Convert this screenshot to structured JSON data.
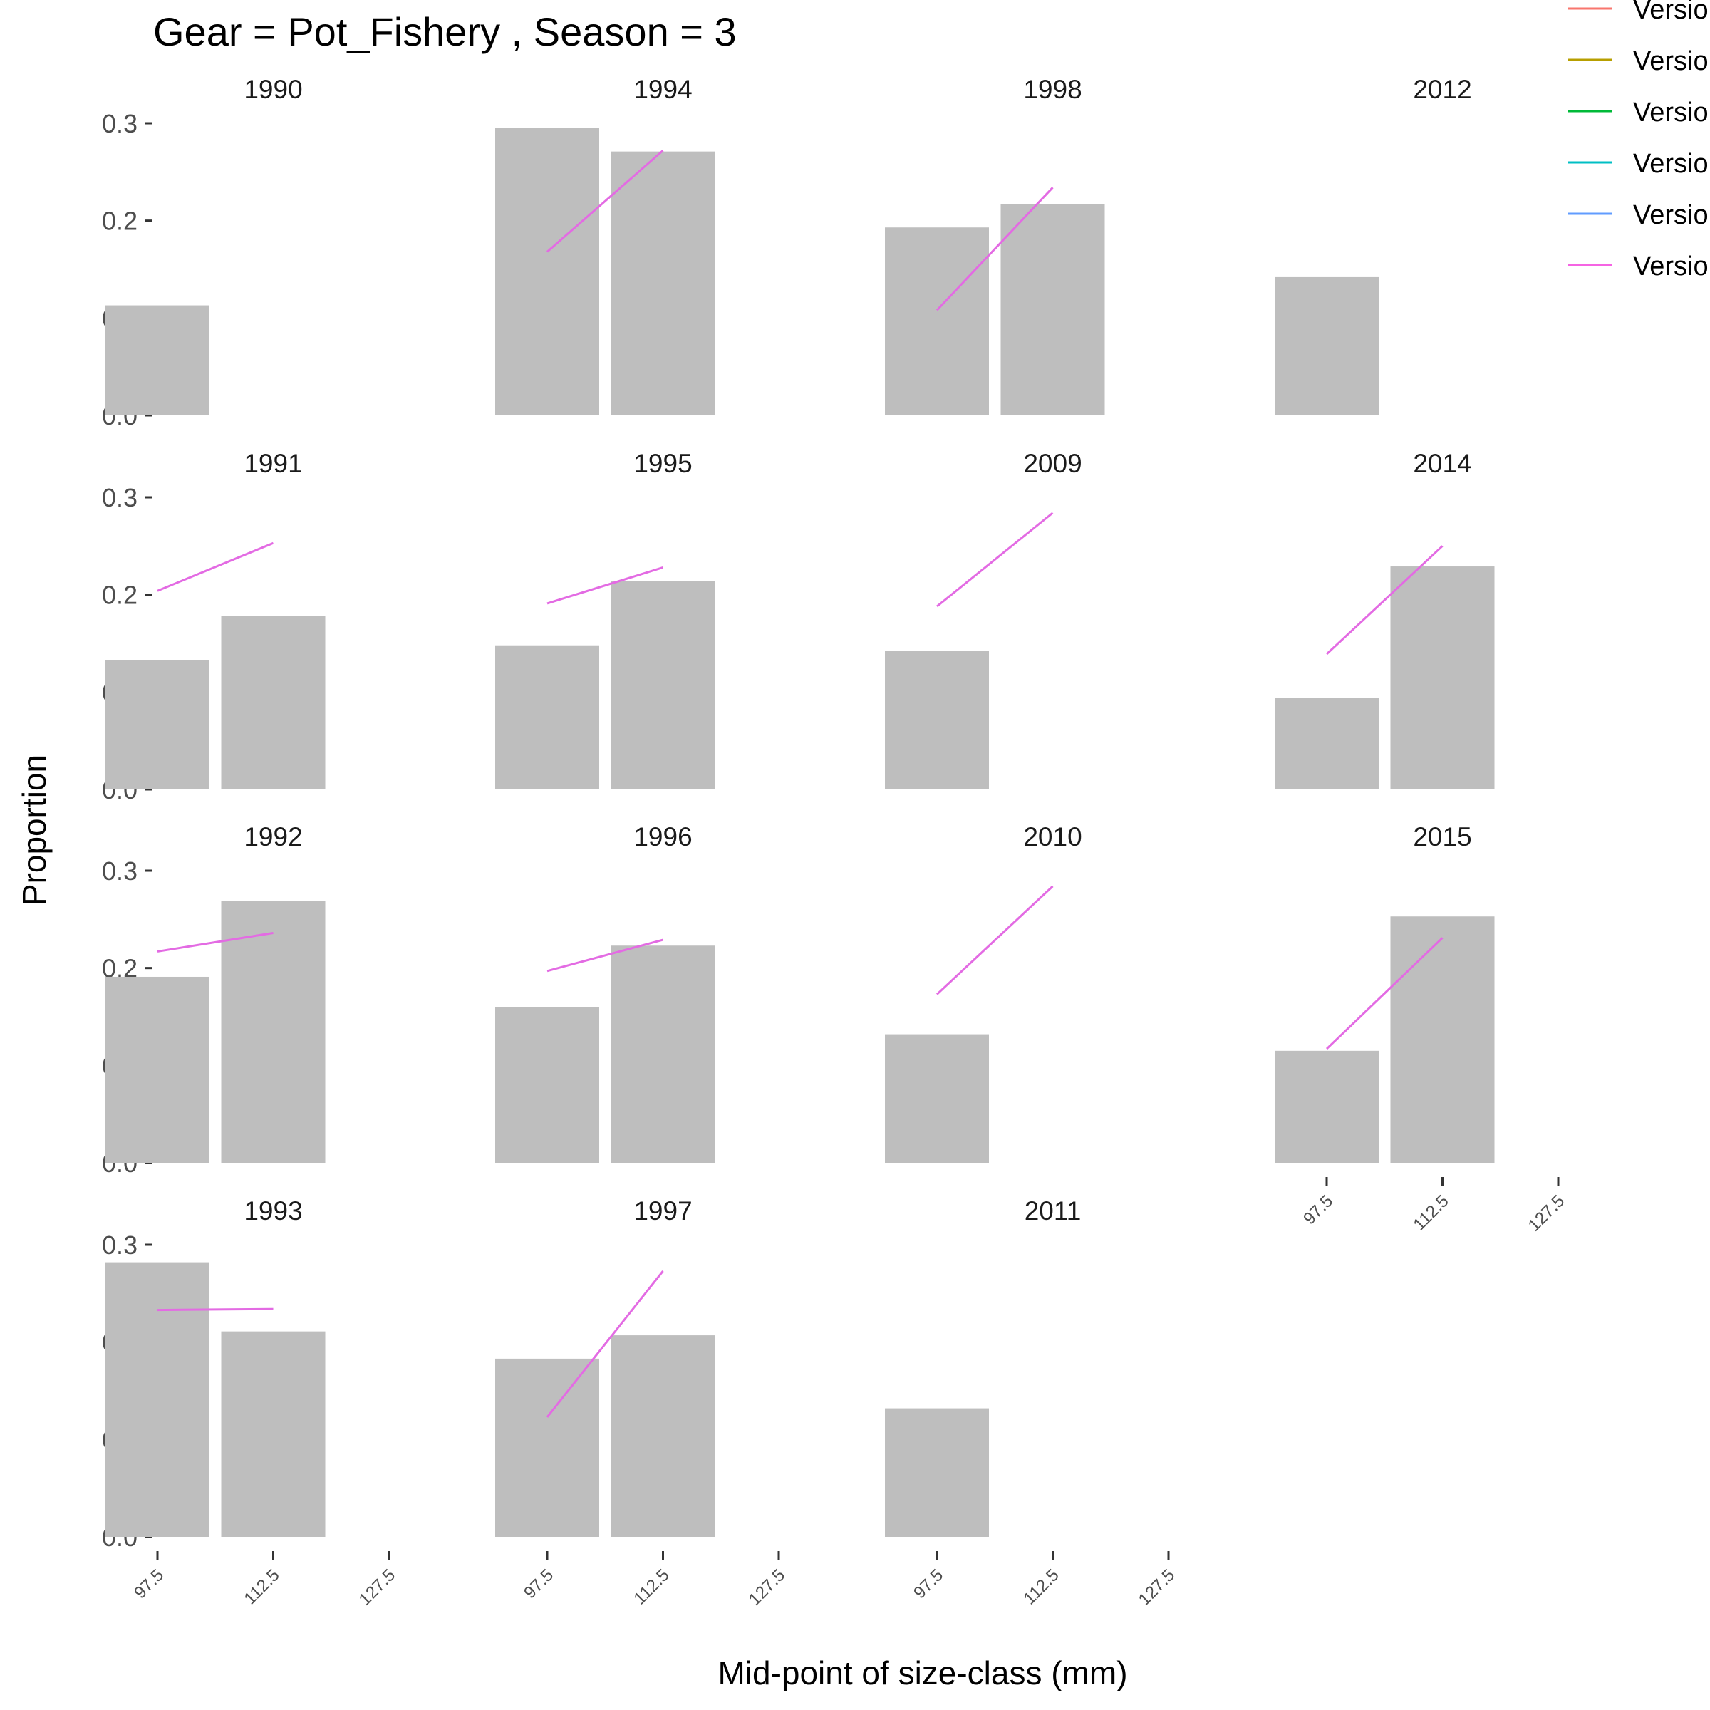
{
  "chart_data": {
    "type": "bar",
    "title": "Gear = Pot_Fishery , Season = 3",
    "xlabel": "Mid-point of size-class (mm)",
    "ylabel": "Proportion",
    "ylim": [
      0,
      0.3
    ],
    "y_ticks": [
      "0.0",
      "0.1",
      "0.2",
      "0.3"
    ],
    "y_tick_values": [
      0,
      0.1,
      0.2,
      0.3
    ],
    "x_ticks": [
      "97.5",
      "112.5",
      "127.5"
    ],
    "x_tick_values": [
      97.5,
      112.5,
      127.5
    ],
    "grid": false,
    "bar_color": "#bebebe",
    "line_color": "#e36be3",
    "legend": {
      "placement": "top-right",
      "entries": [
        {
          "label": "Versio",
          "color": "#f8766d"
        },
        {
          "label": "Versio",
          "color": "#b79f00"
        },
        {
          "label": "Versio",
          "color": "#00ba38"
        },
        {
          "label": "Versio",
          "color": "#00bfc4"
        },
        {
          "label": "Versio",
          "color": "#619cff"
        },
        {
          "label": "Versio",
          "color": "#f564e3"
        }
      ]
    },
    "panels": [
      {
        "year": "1990",
        "col": 0,
        "row": 0,
        "bars": [
          0.113,
          null
        ],
        "line": null,
        "show_x_axis": false
      },
      {
        "year": "1994",
        "col": 1,
        "row": 0,
        "bars": [
          0.295,
          0.271
        ],
        "line": [
          0.168,
          0.272
        ],
        "show_x_axis": false
      },
      {
        "year": "1998",
        "col": 2,
        "row": 0,
        "bars": [
          0.193,
          0.217
        ],
        "line": [
          0.108,
          0.234
        ],
        "show_x_axis": false
      },
      {
        "year": "2012",
        "col": 3,
        "row": 0,
        "bars": [
          0.142,
          null
        ],
        "line": null,
        "show_x_axis": false
      },
      {
        "year": "1991",
        "col": 0,
        "row": 1,
        "bars": [
          0.133,
          0.178
        ],
        "line": [
          0.204,
          0.253
        ],
        "show_x_axis": false
      },
      {
        "year": "1995",
        "col": 1,
        "row": 1,
        "bars": [
          0.148,
          0.214
        ],
        "line": [
          0.191,
          0.228
        ],
        "show_x_axis": false
      },
      {
        "year": "2009",
        "col": 2,
        "row": 1,
        "bars": [
          0.142,
          null
        ],
        "line": [
          0.188,
          0.284
        ],
        "show_x_axis": false
      },
      {
        "year": "2014",
        "col": 3,
        "row": 1,
        "bars": [
          0.094,
          0.229
        ],
        "line": [
          0.139,
          0.25
        ],
        "show_x_axis": false
      },
      {
        "year": "1992",
        "col": 0,
        "row": 2,
        "bars": [
          0.191,
          0.269
        ],
        "line": [
          0.217,
          0.236
        ],
        "show_x_axis": false
      },
      {
        "year": "1996",
        "col": 1,
        "row": 2,
        "bars": [
          0.16,
          0.223
        ],
        "line": [
          0.197,
          0.229
        ],
        "show_x_axis": false
      },
      {
        "year": "2010",
        "col": 2,
        "row": 2,
        "bars": [
          0.132,
          null
        ],
        "line": [
          0.173,
          0.284
        ],
        "show_x_axis": false
      },
      {
        "year": "2015",
        "col": 3,
        "row": 2,
        "bars": [
          0.115,
          0.253
        ],
        "line": [
          0.117,
          0.231
        ],
        "show_x_axis": true
      },
      {
        "year": "1993",
        "col": 0,
        "row": 3,
        "bars": [
          0.282,
          0.211
        ],
        "line": [
          0.233,
          0.234
        ],
        "show_x_axis": true
      },
      {
        "year": "1997",
        "col": 1,
        "row": 3,
        "bars": [
          0.183,
          0.207
        ],
        "line": [
          0.123,
          0.273
        ],
        "show_x_axis": true
      },
      {
        "year": "2011",
        "col": 2,
        "row": 3,
        "bars": [
          0.132,
          null
        ],
        "line": null,
        "show_x_axis": true
      }
    ]
  }
}
